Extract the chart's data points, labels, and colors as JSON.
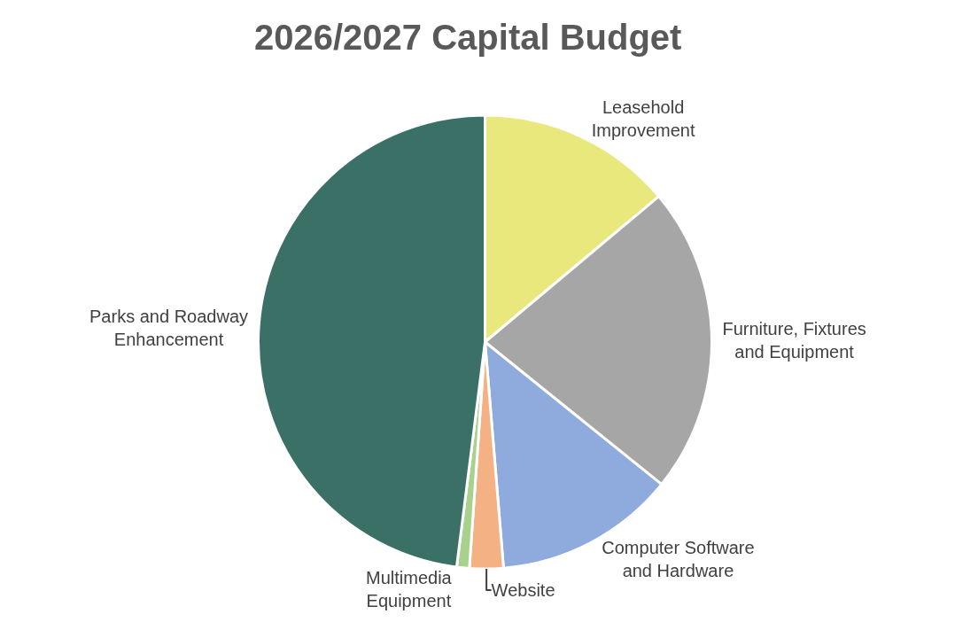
{
  "chart_data": {
    "type": "pie",
    "title": "2026/2027 Capital Budget",
    "categories": [
      "Leasehold Improvement",
      "Furniture, Fixtures and Equipment",
      "Computer Software and Hardware",
      "Website",
      "Multimedia Equipment",
      "Parks and Roadway Enhancement"
    ],
    "values": [
      13.9,
      21.9,
      12.9,
      2.4,
      0.9,
      48.0
    ],
    "colors": [
      "#e9e87c",
      "#a6a6a6",
      "#8faadc",
      "#f4b183",
      "#a9d18e",
      "#3b7066"
    ],
    "legend": false
  }
}
